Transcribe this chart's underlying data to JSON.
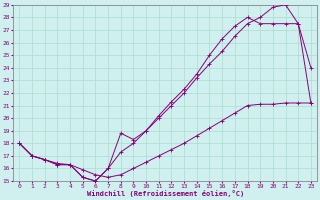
{
  "xlabel": "Windchill (Refroidissement éolien,°C)",
  "xlim": [
    -0.5,
    23.5
  ],
  "ylim": [
    15,
    29
  ],
  "xticks": [
    0,
    1,
    2,
    3,
    4,
    5,
    6,
    7,
    8,
    9,
    10,
    11,
    12,
    13,
    14,
    15,
    16,
    17,
    18,
    19,
    20,
    21,
    22,
    23
  ],
  "yticks": [
    15,
    16,
    17,
    18,
    19,
    20,
    21,
    22,
    23,
    24,
    25,
    26,
    27,
    28,
    29
  ],
  "background_color": "#cff0ee",
  "line_color": "#880077",
  "grid_color": "#aaddcc",
  "curve1_x": [
    0,
    1,
    2,
    3,
    4,
    5,
    6,
    7,
    8,
    9,
    10,
    11,
    12,
    13,
    14,
    15,
    16,
    17,
    18,
    19,
    20,
    21,
    22,
    23
  ],
  "curve1_y": [
    18.0,
    17.0,
    16.7,
    16.3,
    16.3,
    15.3,
    15.0,
    16.0,
    18.8,
    18.3,
    19.0,
    20.0,
    21.0,
    22.0,
    23.2,
    24.3,
    25.3,
    26.5,
    27.5,
    28.0,
    28.8,
    29.0,
    27.5,
    24.0
  ],
  "curve2_x": [
    0,
    1,
    2,
    3,
    4,
    5,
    6,
    7,
    8,
    9,
    10,
    11,
    12,
    13,
    14,
    15,
    16,
    17,
    18,
    19,
    20,
    21,
    22,
    23
  ],
  "curve2_y": [
    18.0,
    17.0,
    16.7,
    16.3,
    16.3,
    15.3,
    15.0,
    16.0,
    17.3,
    18.0,
    19.0,
    20.2,
    21.3,
    22.3,
    23.5,
    25.0,
    26.3,
    27.3,
    28.0,
    27.5,
    27.5,
    27.5,
    27.5,
    21.2
  ],
  "curve3_x": [
    0,
    1,
    2,
    3,
    4,
    5,
    6,
    7,
    8,
    9,
    10,
    11,
    12,
    13,
    14,
    15,
    16,
    17,
    18,
    19,
    20,
    21,
    22,
    23
  ],
  "curve3_y": [
    18.0,
    17.0,
    16.7,
    16.4,
    16.3,
    15.9,
    15.5,
    15.3,
    15.5,
    16.0,
    16.5,
    17.0,
    17.5,
    18.0,
    18.6,
    19.2,
    19.8,
    20.4,
    21.0,
    21.1,
    21.1,
    21.2,
    21.2,
    21.2
  ]
}
